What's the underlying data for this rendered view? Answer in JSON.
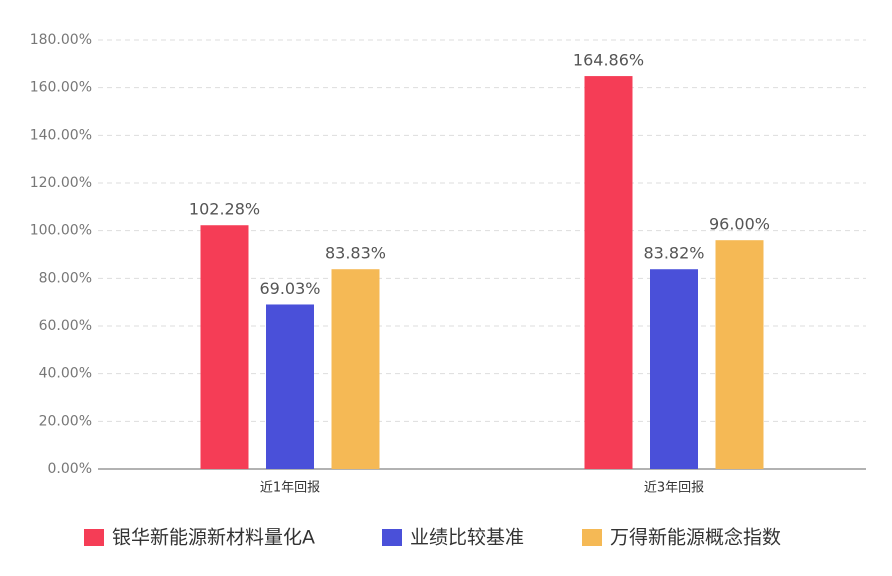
{
  "chart_data": {
    "type": "bar",
    "categories": [
      "近1年回报",
      "近3年回报"
    ],
    "series": [
      {
        "name": "银华新能源新材料量化A",
        "color": "#f53d56",
        "values": [
          102.28,
          164.86
        ],
        "value_labels": [
          "102.28%",
          "164.86%"
        ]
      },
      {
        "name": "业绩比较基准",
        "color": "#4a50d9",
        "values": [
          69.03,
          83.82
        ],
        "value_labels": [
          "69.03%",
          "83.82%"
        ]
      },
      {
        "name": "万得新能源概念指数",
        "color": "#f5b955",
        "values": [
          83.83,
          96.0
        ],
        "value_labels": [
          "83.83%",
          "96.00%"
        ]
      }
    ],
    "ylim": [
      0,
      180
    ],
    "yticks": [
      {
        "value": 0,
        "label": "0.00%"
      },
      {
        "value": 20,
        "label": "20.00%"
      },
      {
        "value": 40,
        "label": "40.00%"
      },
      {
        "value": 60,
        "label": "60.00%"
      },
      {
        "value": 80,
        "label": "80.00%"
      },
      {
        "value": 100,
        "label": "100.00%"
      },
      {
        "value": 120,
        "label": "120.00%"
      },
      {
        "value": 140,
        "label": "140.00%"
      },
      {
        "value": 160,
        "label": "160.00%"
      },
      {
        "value": 180,
        "label": "180.00%"
      }
    ],
    "grid": true,
    "legend": "bottom"
  }
}
